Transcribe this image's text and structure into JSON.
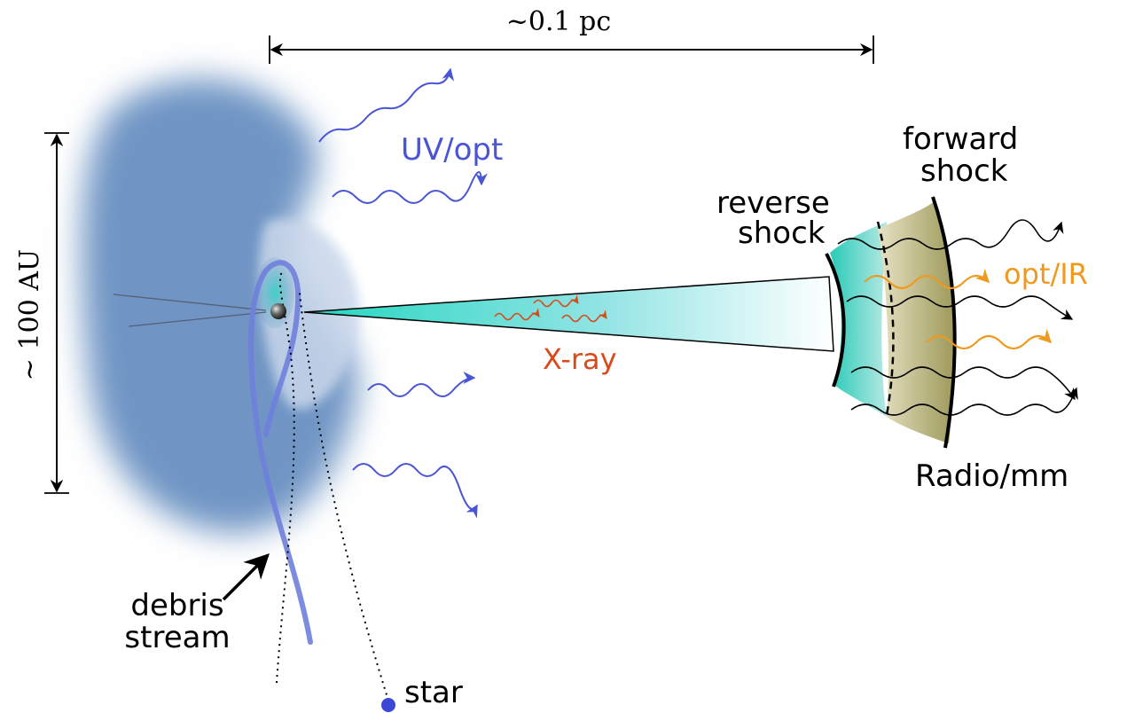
{
  "labels": {
    "scale_horizontal": "~0.1 pc",
    "scale_vertical": "~ 100 AU",
    "uv_opt": "UV/opt",
    "forward_shock_line1": "forward",
    "forward_shock_line2": "shock",
    "reverse_shock_line1": "reverse",
    "reverse_shock_line2": "shock",
    "opt_ir": "opt/IR",
    "x_ray": "X-ray",
    "radio_mm": "Radio/mm",
    "debris_line1": "debris",
    "debris_line2": "stream",
    "star": "star"
  },
  "colors": {
    "uv_blue": "#4a55d6",
    "xray_red": "#d84a1a",
    "optir_orange": "#ef9a1e",
    "cloud_blue": "#6f95c4",
    "jet_teal": "#30d8c4",
    "forward_region": "#a7a36a",
    "debris_stream": "#6f7fdc"
  }
}
